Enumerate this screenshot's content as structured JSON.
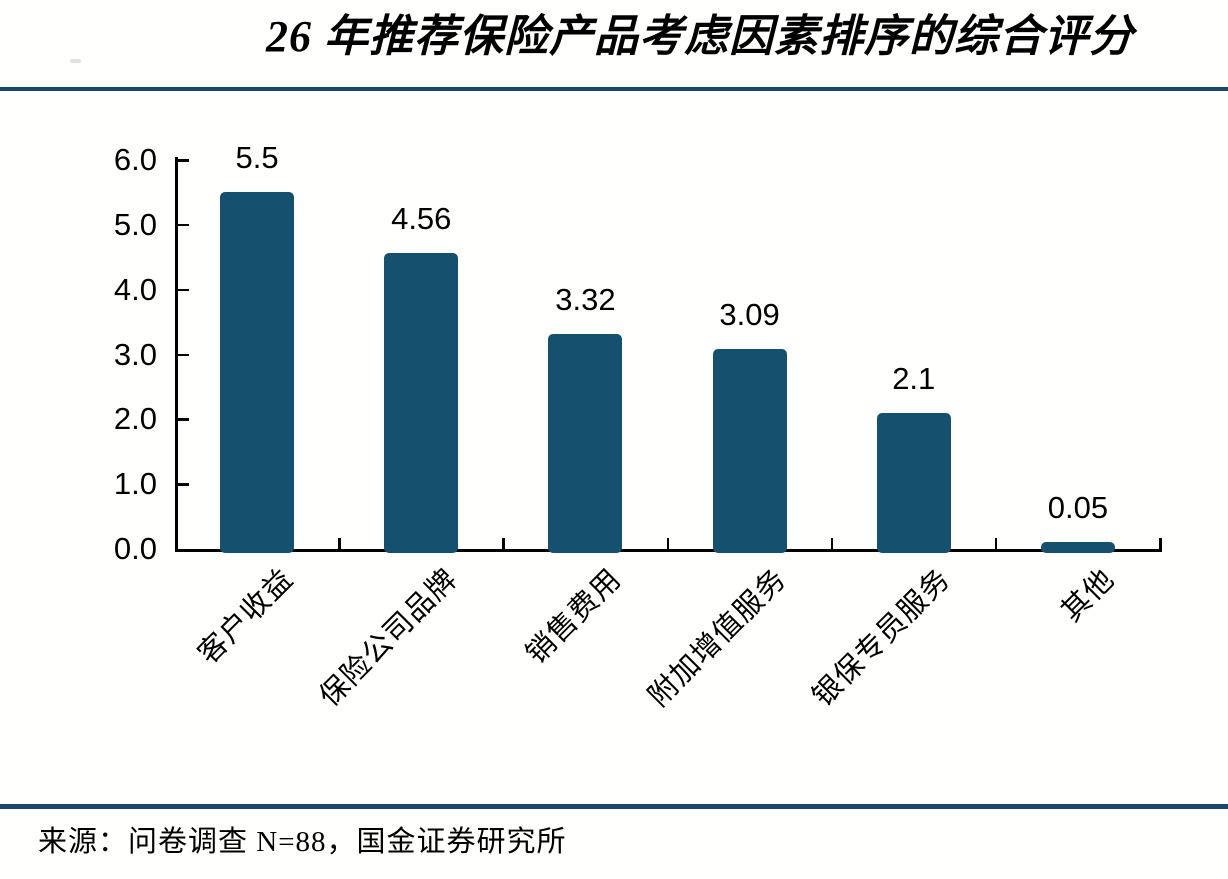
{
  "title": "26 年推荐保险产品考虑因素排序的综合评分",
  "source_note": "来源：问卷调查 N=88，国金证券研究所",
  "colors": {
    "bar": "#15506e",
    "divider_rule": "#17476c",
    "axis": "#000000",
    "text": "#000000",
    "background": "#ffffff"
  },
  "chart_data": {
    "type": "bar",
    "title": "26 年推荐保险产品考虑因素排序的综合评分",
    "categories": [
      "客户收益",
      "保险公司品牌",
      "销售费用",
      "附加增值服务",
      "银保专员服务",
      "其他"
    ],
    "values": [
      5.5,
      4.56,
      3.32,
      3.09,
      2.1,
      0.05
    ],
    "data_labels": [
      "5.5",
      "4.56",
      "3.32",
      "3.09",
      "2.1",
      "0.05"
    ],
    "xlabel": "",
    "ylabel": "",
    "ylim": [
      0,
      6
    ],
    "ytick_labels": [
      "0.0",
      "1.0",
      "2.0",
      "3.0",
      "4.0",
      "5.0",
      "6.0"
    ],
    "ytick_step": 1.0,
    "grid": false,
    "legend": "none",
    "bar_color": "#15506e",
    "xlabel_rotation_deg": 45,
    "source": "来源：问卷调查 N=88，国金证券研究所"
  }
}
